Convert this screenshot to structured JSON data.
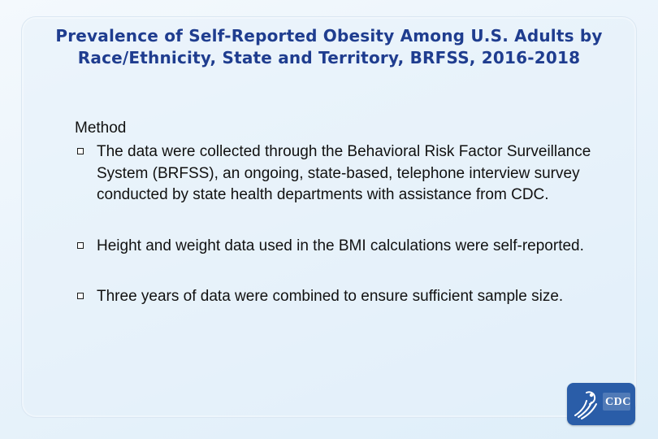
{
  "slide": {
    "title": "Prevalence of Self-Reported Obesity Among U.S. Adults by Race/Ethnicity, State and Territory, BRFSS, 2016-2018",
    "method_heading": "Method",
    "bullets": [
      "The data were collected through the Behavioral Risk Factor Surveillance System (BRFSS), an ongoing, state-based, telephone interview survey conducted by state health departments with assistance from CDC.",
      "Height and weight data used in the BMI calculations were self-reported.",
      "Three years of data were combined to ensure sufficient sample size."
    ],
    "bullet_icon": "square-outline-bullet-icon"
  },
  "logo": {
    "text": "CDC",
    "icon": "hhs-eagle-icon"
  },
  "colors": {
    "title": "#1f3d8f",
    "body_text": "#111111",
    "background": "#e9f3fb",
    "logo_bg": "#2a5da8"
  }
}
